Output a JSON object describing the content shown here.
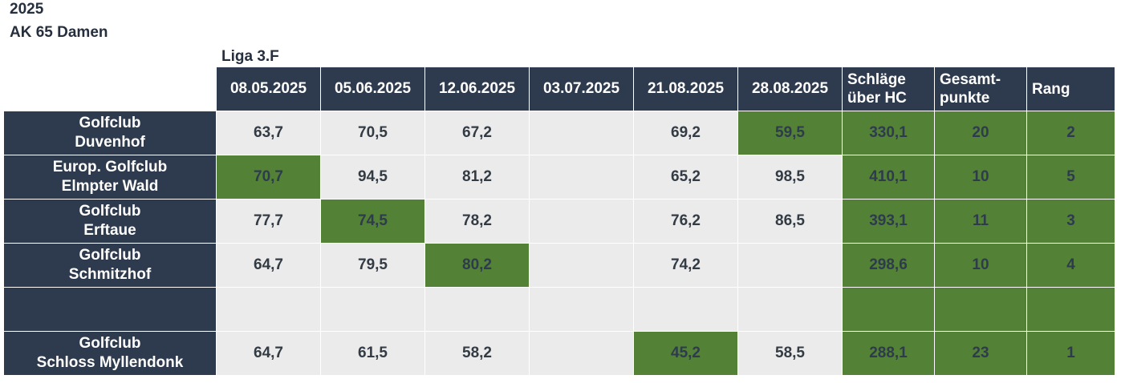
{
  "header": {
    "year": "2025",
    "class": "AK 65 Damen",
    "league": "Liga 3.F"
  },
  "columns": {
    "dates": [
      "08.05.2025",
      "05.06.2025",
      "12.06.2025",
      "03.07.2025",
      "21.08.2025",
      "28.08.2025"
    ],
    "strokes_line1": "Schläge",
    "strokes_line2": "über HC",
    "points_line1": "Gesamt-",
    "points_line2": "punkte",
    "rank": "Rang"
  },
  "rows": [
    {
      "club_line1": "Golfclub",
      "club_line2": "Duvenhof",
      "scores": [
        "63,7",
        "70,5",
        "67,2",
        "",
        "69,2",
        "59,5"
      ],
      "strokes": "330,1",
      "points": "20",
      "rank": "2"
    },
    {
      "club_line1": "Europ. Golfclub",
      "club_line2": "Elmpter Wald",
      "scores": [
        "70,7",
        "94,5",
        "81,2",
        "",
        "65,2",
        "98,5"
      ],
      "strokes": "410,1",
      "points": "10",
      "rank": "5"
    },
    {
      "club_line1": "Golfclub",
      "club_line2": "Erftaue",
      "scores": [
        "77,7",
        "74,5",
        "78,2",
        "",
        "76,2",
        "86,5"
      ],
      "strokes": "393,1",
      "points": "11",
      "rank": "3"
    },
    {
      "club_line1": "Golfclub",
      "club_line2": "Schmitzhof",
      "scores": [
        "64,7",
        "79,5",
        "80,2",
        "",
        "74,2",
        ""
      ],
      "strokes": "298,6",
      "points": "10",
      "rank": "4"
    },
    {
      "club_line1": "",
      "club_line2": "",
      "scores": [
        "",
        "",
        "",
        "",
        "",
        ""
      ],
      "strokes": "",
      "points": "",
      "rank": ""
    },
    {
      "club_line1": "Golfclub",
      "club_line2": "Schloss Myllendonk",
      "scores": [
        "64,7",
        "61,5",
        "58,2",
        "",
        "45,2",
        "58,5"
      ],
      "strokes": "288,1",
      "points": "23",
      "rank": "1"
    }
  ],
  "colors": {
    "header_bg": "#2e3b4e",
    "cell_bg": "#ebebeb",
    "highlight_green": "#538135"
  }
}
